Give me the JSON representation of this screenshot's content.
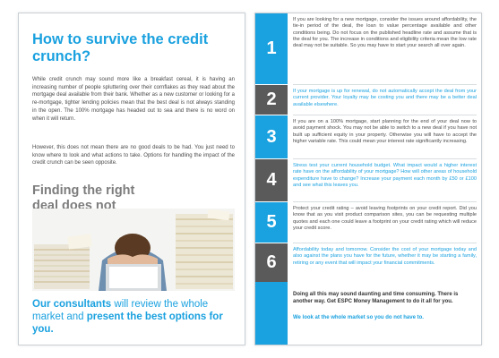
{
  "left_page": {
    "title": "How to survive the credit crunch?",
    "body_p1": "While credit crunch may sound more like a breakfast cereal, it is having an increasing number of people spluttering over their cornflakes as they read about the mortgage deal available from their bank. Whether as a new customer or looking for a re-mortgage, tighter lending policies mean that the best deal is not always standing in the open. The 100% mortgage has headed out to sea and there is no word on when it will return.",
    "body_p2": "However, this does not mean there are no good deals to be had. You just need to know where to look and what actions to take. Options for handling the impact of the credit crunch can be seen opposite.",
    "heading": "Finding the right deal does not have to be hard.",
    "callout_part1": "Our consultants",
    "callout_part2": " will review the whole market and ",
    "callout_part3": "present the best options for you."
  },
  "right_page": {
    "items": [
      {
        "number": "1",
        "style": "dark",
        "text": "If you are looking for a new mortgage, consider the issues around affordability, the tie-in period of the deal, the loan to value percentage available and other conditions being. Do not focus on the published headline rate and assume that is the deal for you. The increase in conditions and eligibility criteria mean the low rate deal may not be suitable. So you may have to start your search all over again."
      },
      {
        "number": "2",
        "style": "accent",
        "text": "If your mortgage is up for renewal, do not automatically accept the deal from your current provider. Your loyalty may be costing you and there may be a better deal available elsewhere."
      },
      {
        "number": "3",
        "style": "dark",
        "text": "If you are on a 100% mortgage, start planning for the end of your deal now to avoid payment shock. You may not be able to switch to a new deal if you have not built up sufficient equity in your property. Otherwise you will have to accept the higher variable rate. This could mean your interest rate significantly increasing."
      },
      {
        "number": "4",
        "style": "accent",
        "text": "Stress test your current household budget. What impact would a higher interest rate have on the affordability of your mortgage? How will other areas of household expenditure have to change? Increase your payment each month by £50 or £100 and see what this leaves you."
      },
      {
        "number": "5",
        "style": "dark",
        "text": "Protect your credit rating – avoid leaving footprints on your credit report. Did you know that as you visit product comparison sites, you can be requesting multiple quotes and each one could leave a footprint on your credit rating which will reduce your credit score."
      },
      {
        "number": "6",
        "style": "accent",
        "text": "Affordability today and tomorrow. Consider the cost of your mortgage today and also against the plans you have for the future, whether it may be starting a family, retiring or any event that will impact your financial commitments."
      }
    ],
    "footer_text": "Doing all this may sound daunting and time consuming. There is another way. Get ESPC Money Management to do it all for you.",
    "footer_tagline": "We look at the whole market so you do not have to."
  },
  "colors": {
    "accent": "#1aa1df",
    "dark_block": "#5a5a5a",
    "body_text": "#4a4a4a"
  }
}
